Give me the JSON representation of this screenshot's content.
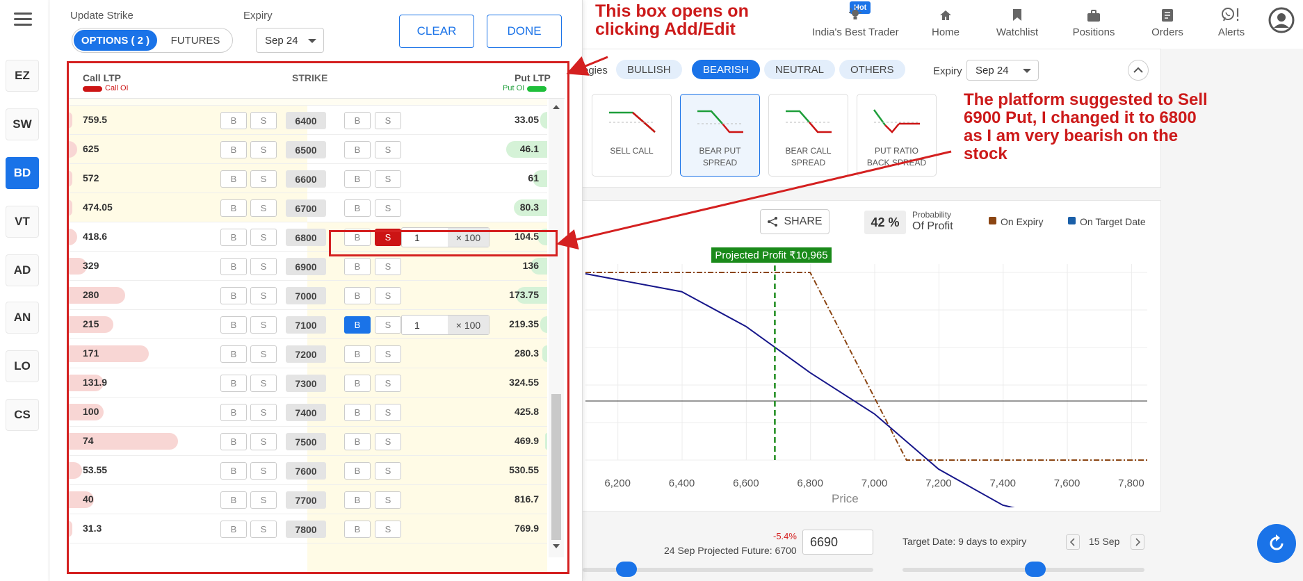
{
  "leftrail": {
    "items": [
      "EZ",
      "SW",
      "BD",
      "VT",
      "AD",
      "AN",
      "LO",
      "CS"
    ],
    "active": "BD"
  },
  "topnav": {
    "hot": "Hot",
    "items": [
      {
        "label": "India's Best Trader",
        "icon": "bulb-icon"
      },
      {
        "label": "Home",
        "icon": "home-icon"
      },
      {
        "label": "Watchlist",
        "icon": "bookmark-icon"
      },
      {
        "label": "Positions",
        "icon": "briefcase-icon"
      },
      {
        "label": "Orders",
        "icon": "orders-icon"
      },
      {
        "label": "Alerts",
        "icon": "whatsapp-icon"
      }
    ]
  },
  "strategies": {
    "label_partial": "egies",
    "chips": [
      "BULLISH",
      "BEARISH",
      "NEUTRAL",
      "OTHERS"
    ],
    "active_chip": "BEARISH",
    "expiry_label": "Expiry",
    "expiry_value": "Sep 24",
    "cards": [
      {
        "name1": "SELL CALL",
        "name2": ""
      },
      {
        "name1": "BEAR PUT",
        "name2": "SPREAD"
      },
      {
        "name1": "BEAR CALL",
        "name2": "SPREAD"
      },
      {
        "name1": "PUT RATIO",
        "name2": "BACK SPREAD"
      }
    ],
    "active_card": 1
  },
  "payoff": {
    "share": "SHARE",
    "probability_value": "42 %",
    "probability_label": "Probability",
    "probability_sub": "Of Profit",
    "legend_expiry": "On Expiry",
    "legend_target": "On Target Date",
    "projected_profit": "Projected Profit ₹10,965",
    "x_label": "Price",
    "colors": {
      "expiry": "#8b4513",
      "target": "#1a5fa8",
      "projected": "#1a8a1a"
    }
  },
  "chart_data": {
    "type": "line",
    "xlabel": "Price",
    "ylabel": "",
    "x_ticks": [
      6200,
      6400,
      6600,
      6800,
      7000,
      7200,
      7400,
      7600,
      7800
    ],
    "xlim": [
      6100,
      7850
    ],
    "series": [
      {
        "name": "On Expiry",
        "style": "dash-dot",
        "x": [
          6100,
          6800,
          7100,
          7850
        ],
        "y": [
          1,
          1,
          -1,
          -1
        ]
      },
      {
        "name": "On Target Date",
        "style": "solid",
        "x": [
          6100,
          6400,
          6600,
          6800,
          7000,
          7200,
          7400,
          7600,
          7850
        ],
        "y": [
          0.99,
          0.85,
          0.58,
          0.22,
          -0.1,
          -0.53,
          -0.81,
          -0.93,
          -0.97
        ]
      }
    ],
    "projected_price": 6690
  },
  "footer": {
    "change": "-5.4%",
    "projected_future": "24 Sep Projected Future: 6700",
    "future_input": "6690",
    "target_date": "Target Date: 9 days to expiry",
    "date": "15 Sep",
    "slider1": 0.15,
    "slider2": 0.55
  },
  "dialog": {
    "update_strike": "Update Strike",
    "options_label": "OPTIONS ( 2 )",
    "futures_label": "FUTURES",
    "expiry_label": "Expiry",
    "expiry_value": "Sep 24",
    "clear": "CLEAR",
    "done": "DONE",
    "call_ltp": "Call LTP",
    "call_oi": "Call OI",
    "strike": "STRIKE",
    "put_ltp": "Put LTP",
    "put_oi": "Put OI",
    "b": "B",
    "s": "S",
    "rows": [
      {
        "call": "759.5",
        "strike": "6400",
        "put": "33.05",
        "callbar": 0.02,
        "putbar": 0.03
      },
      {
        "call": "625",
        "strike": "6500",
        "put": "46.1",
        "callbar": 0.04,
        "putbar": 0.17
      },
      {
        "call": "572",
        "strike": "6600",
        "put": "61",
        "callbar": 0.02,
        "putbar": 0.06
      },
      {
        "call": "474.05",
        "strike": "6700",
        "put": "80.3",
        "callbar": 0.02,
        "putbar": 0.14
      },
      {
        "call": "418.6",
        "strike": "6800",
        "put": "104.5",
        "callbar": 0.04,
        "putbar": 0.04,
        "put_sell": true,
        "qty": "1",
        "lot": "× 100"
      },
      {
        "call": "329",
        "strike": "6900",
        "put": "136",
        "callbar": 0.08,
        "putbar": 0.07
      },
      {
        "call": "280",
        "strike": "7000",
        "put": "173.75",
        "callbar": 0.24,
        "putbar": 0.13
      },
      {
        "call": "215",
        "strike": "7100",
        "put": "219.35",
        "callbar": 0.19,
        "putbar": 0.03,
        "put_buy": true,
        "qty": "1",
        "lot": "× 100"
      },
      {
        "call": "171",
        "strike": "7200",
        "put": "280.3",
        "callbar": 0.34,
        "putbar": 0.02
      },
      {
        "call": "131.9",
        "strike": "7300",
        "put": "324.55",
        "callbar": 0.15,
        "putbar": 0
      },
      {
        "call": "100",
        "strike": "7400",
        "put": "425.8",
        "callbar": 0.15,
        "putbar": 0
      },
      {
        "call": "74",
        "strike": "7500",
        "put": "469.9",
        "callbar": 0.46,
        "putbar": 0.01
      },
      {
        "call": "53.55",
        "strike": "7600",
        "put": "530.55",
        "callbar": 0.06,
        "putbar": 0
      },
      {
        "call": "40",
        "strike": "7700",
        "put": "816.7",
        "callbar": 0.11,
        "putbar": 0
      },
      {
        "call": "31.3",
        "strike": "7800",
        "put": "769.9",
        "callbar": 0.02,
        "putbar": 0
      }
    ]
  },
  "annotations": {
    "note1_line1": "This box opens on",
    "note1_line2": "clicking Add/Edit",
    "note2_line1": "The platform suggested to Sell",
    "note2_line2": "6900 Put, I changed it to 6800",
    "note2_line3": "as I am very bearish on the",
    "note2_line4": "stock",
    "color": "#d42020"
  }
}
